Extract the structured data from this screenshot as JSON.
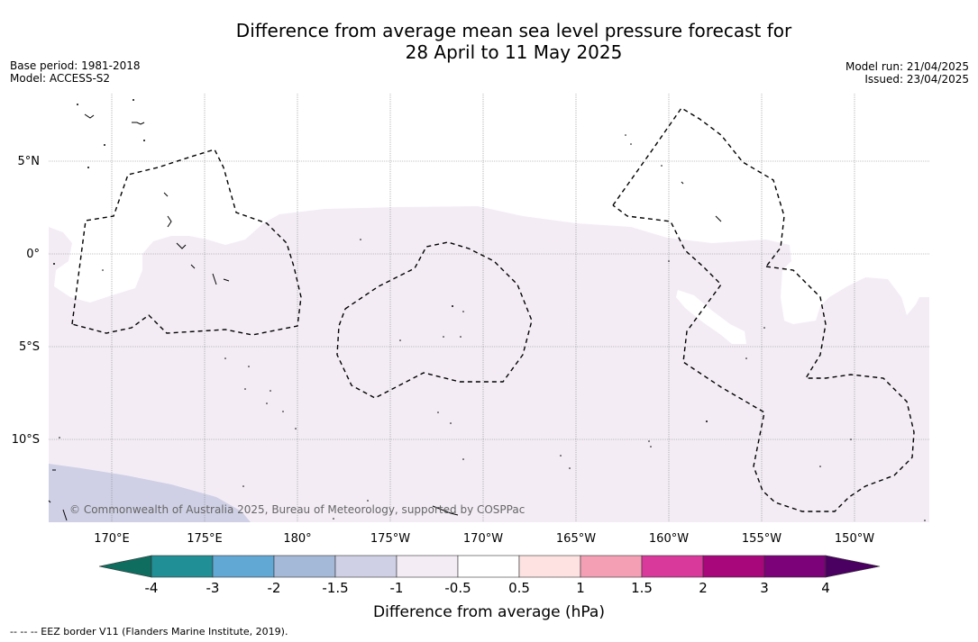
{
  "title": {
    "line1": "Difference from average mean sea level pressure forecast for",
    "line2": "28 April to 11 May 2025"
  },
  "meta_left": {
    "base_period": "Base period: 1981-2018",
    "model": "Model: ACCESS-S2"
  },
  "meta_right": {
    "model_run": "Model run: 21/04/2025",
    "issued": "Issued: 23/04/2025"
  },
  "map": {
    "lon_labels": [
      "170°E",
      "175°E",
      "180°",
      "175°W",
      "170°W",
      "165°W",
      "160°W",
      "155°W",
      "150°W"
    ],
    "lat_labels": [
      "5°N",
      "0°",
      "5°S",
      "10°S"
    ],
    "copyright": "© Commonwealth of Australia 2025, Bureau of Meteorology, supported by COSPPac",
    "colors": {
      "background": "#f3ecf5",
      "neg_1_5": "#cfd0e5",
      "land": "#000000",
      "eez": "#000000"
    }
  },
  "colorbar": {
    "ticks": [
      "-4",
      "-3",
      "-2",
      "-1.5",
      "-1",
      "-0.5",
      "0.5",
      "1",
      "1.5",
      "2",
      "3",
      "4"
    ],
    "colors": [
      "#0f6d60",
      "#218f96",
      "#62a8d4",
      "#a4b9d8",
      "#cfd0e5",
      "#f3ecf5",
      "#ffffff",
      "#fde2e1",
      "#f59fb5",
      "#d8399b",
      "#a8077c",
      "#7b0278",
      "#4a0060"
    ],
    "label": "Difference from average (hPa)"
  },
  "footer": "-- -- -- EEZ border V11 (Flanders Marine Institute, 2019)."
}
